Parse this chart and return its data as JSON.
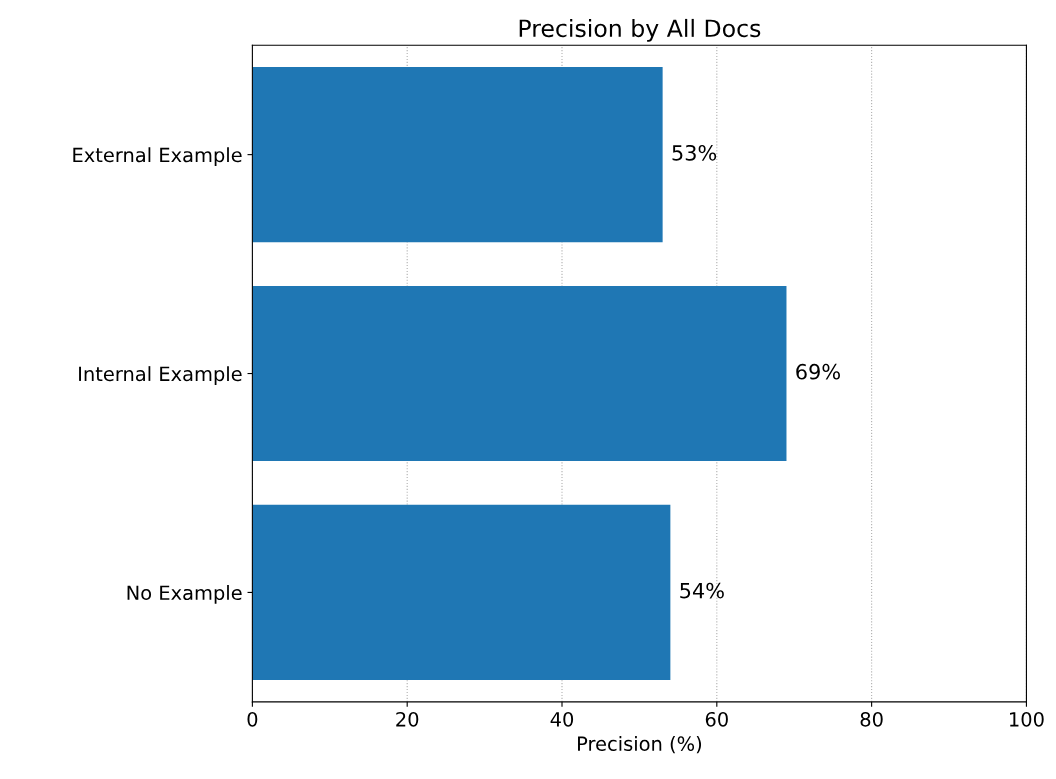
{
  "chart_data": {
    "type": "bar",
    "orientation": "horizontal",
    "title": "Precision by All Docs",
    "xlabel": "Precision (%)",
    "categories": [
      "External Example",
      "Internal Example",
      "No Example"
    ],
    "values": [
      53,
      69,
      54
    ],
    "value_labels": [
      "53%",
      "69%",
      "54%"
    ],
    "color": "#1f77b4",
    "xlim": [
      0,
      100
    ],
    "xticks": [
      0,
      20,
      40,
      60,
      80,
      100
    ],
    "grid": "x"
  }
}
